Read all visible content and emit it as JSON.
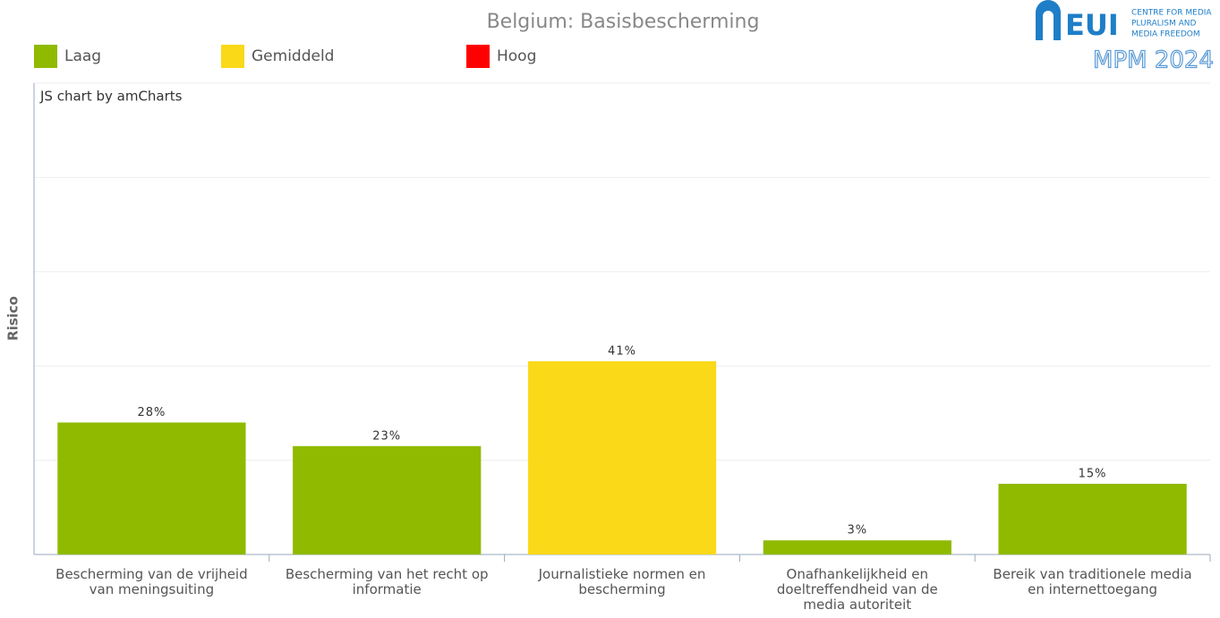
{
  "chart_data": {
    "type": "bar",
    "title": "Belgium: Basisbescherming",
    "ylabel": "Risico",
    "credit": "JS chart by amCharts",
    "legend": [
      {
        "name": "Laag",
        "color": "#8fba00"
      },
      {
        "name": "Gemiddeld",
        "color": "#fad919"
      },
      {
        "name": "Hoog",
        "color": "#ff0000"
      }
    ],
    "categories": [
      "Bescherming van de vrijheid van meningsuiting",
      "Bescherming van het recht op informatie",
      "Journalistieke normen en bescherming",
      "Onafhankelijkheid en doeltreffendheid van de media autoriteit",
      "Bereik van traditionele media en internettoegang"
    ],
    "values": [
      28,
      23,
      41,
      3,
      15
    ],
    "value_labels": [
      "28%",
      "23%",
      "41%",
      "3%",
      "15%"
    ],
    "colors": [
      "#8fba00",
      "#8fba00",
      "#fad919",
      "#8fba00",
      "#8fba00"
    ],
    "ylim": [
      0,
      100
    ],
    "yticks": [
      0,
      20,
      40,
      60,
      80,
      100
    ],
    "grid": true
  },
  "logo": {
    "name": "EUI",
    "lines": [
      "CENTRE FOR MEDIA",
      "PLURALISM AND",
      "MEDIA FREEDOM"
    ],
    "project": "MPM 2024"
  }
}
